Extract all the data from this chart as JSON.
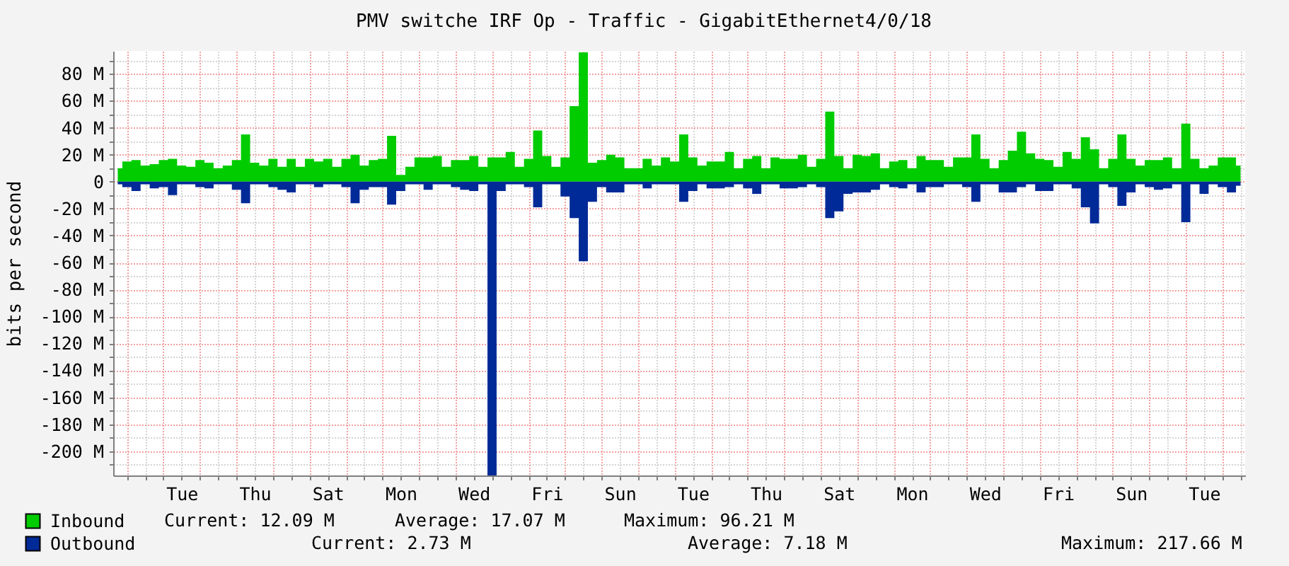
{
  "chart_data": {
    "type": "area",
    "title": "PMV switche IRF Op - Traffic - GigabitEthernet4/0/18",
    "ylabel": "bits per second",
    "categories": [
      null,
      null,
      null,
      null,
      null,
      null,
      null,
      "Tue",
      null,
      null,
      null,
      null,
      null,
      null,
      null,
      "Thu",
      null,
      null,
      null,
      null,
      null,
      null,
      null,
      "Sat",
      null,
      null,
      null,
      null,
      null,
      null,
      null,
      "Mon",
      null,
      null,
      null,
      null,
      null,
      null,
      null,
      "Wed",
      null,
      null,
      null,
      null,
      null,
      null,
      null,
      "Fri",
      null,
      null,
      null,
      null,
      null,
      null,
      null,
      "Sun",
      null,
      null,
      null,
      null,
      null,
      null,
      null,
      "Tue",
      null,
      null,
      null,
      null,
      null,
      null,
      null,
      "Thu",
      null,
      null,
      null,
      null,
      null,
      null,
      null,
      "Sat",
      null,
      null,
      null,
      null,
      null,
      null,
      null,
      "Mon",
      null,
      null,
      null,
      null,
      null,
      null,
      null,
      "Wed",
      null,
      null,
      null,
      null,
      null,
      null,
      null,
      "Fri",
      null,
      null,
      null,
      null,
      null,
      null,
      null,
      "Sun",
      null,
      null,
      null,
      null,
      null,
      null,
      null,
      "Tue",
      null,
      null,
      null,
      null
    ],
    "ylim": [
      -218,
      97
    ],
    "yticks": [
      {
        "value": -210,
        "label": null
      },
      {
        "value": -200,
        "label": "-200 M"
      },
      {
        "value": -190,
        "label": null
      },
      {
        "value": -180,
        "label": "-180 M"
      },
      {
        "value": -170,
        "label": null
      },
      {
        "value": -160,
        "label": "-160 M"
      },
      {
        "value": -150,
        "label": null
      },
      {
        "value": -140,
        "label": "-140 M"
      },
      {
        "value": -130,
        "label": null
      },
      {
        "value": -120,
        "label": "-120 M"
      },
      {
        "value": -110,
        "label": null
      },
      {
        "value": -100,
        "label": "-100 M"
      },
      {
        "value": -90,
        "label": null
      },
      {
        "value": -80,
        "label": "-80 M"
      },
      {
        "value": -70,
        "label": null
      },
      {
        "value": -60,
        "label": "-60 M"
      },
      {
        "value": -50,
        "label": null
      },
      {
        "value": -40,
        "label": "-40 M"
      },
      {
        "value": -30,
        "label": null
      },
      {
        "value": -20,
        "label": "-20 M"
      },
      {
        "value": -10,
        "label": null
      },
      0,
      {
        "value": 10,
        "label": null
      },
      {
        "value": 20,
        "label": "20 M"
      },
      {
        "value": 30,
        "label": null
      },
      {
        "value": 40,
        "label": "40 M"
      },
      {
        "value": 50,
        "label": null
      },
      {
        "value": 60,
        "label": "60 M"
      },
      {
        "value": 70,
        "label": null
      },
      {
        "value": 80,
        "label": "80 M"
      },
      {
        "value": 90,
        "label": null
      }
    ],
    "grid": true,
    "legend": "bottom left",
    "series": [
      {
        "name": "Inbound",
        "color": "#00cc00",
        "values": [
          10,
          15,
          16,
          12,
          13,
          16,
          17,
          12,
          11,
          16,
          14,
          10,
          12,
          16,
          35,
          14,
          12,
          17,
          11,
          17,
          11,
          17,
          15,
          17,
          11,
          17,
          20,
          12,
          16,
          17,
          34,
          5,
          11,
          18,
          18,
          19,
          11,
          16,
          16,
          19,
          11,
          18,
          18,
          22,
          11,
          17,
          38,
          19,
          11,
          18,
          56,
          96,
          14,
          16,
          20,
          18,
          10,
          10,
          17,
          12,
          18,
          15,
          35,
          18,
          12,
          15,
          15,
          22,
          10,
          17,
          19,
          10,
          18,
          17,
          17,
          20,
          11,
          17,
          52,
          19,
          10,
          20,
          19,
          21,
          10,
          15,
          16,
          10,
          19,
          16,
          16,
          11,
          18,
          18,
          35,
          17,
          10,
          16,
          23,
          37,
          21,
          17,
          16,
          11,
          22,
          17,
          33,
          24,
          10,
          17,
          35,
          17,
          12,
          16,
          16,
          18,
          10,
          43,
          17,
          10,
          12,
          18,
          18,
          12
        ]
      },
      {
        "name": "Outbound",
        "color": "#002a97",
        "values": [
          -2,
          -4,
          -7,
          -2,
          -5,
          -4,
          -10,
          -2,
          -2,
          -4,
          -5,
          -2,
          -2,
          -6,
          -16,
          -2,
          -2,
          -4,
          -6,
          -8,
          -2,
          -2,
          -4,
          -2,
          -2,
          -4,
          -16,
          -6,
          -4,
          -4,
          -17,
          -7,
          -2,
          -2,
          -6,
          -2,
          -2,
          -4,
          -6,
          -7,
          -2,
          -218,
          -7,
          -2,
          -2,
          -4,
          -19,
          -2,
          -2,
          -11,
          -27,
          -59,
          -15,
          -4,
          -8,
          -8,
          -2,
          -2,
          -5,
          -2,
          -2,
          -2,
          -15,
          -7,
          -2,
          -5,
          -5,
          -4,
          -2,
          -5,
          -9,
          -2,
          -2,
          -5,
          -5,
          -4,
          -2,
          -4,
          -27,
          -22,
          -9,
          -8,
          -8,
          -6,
          -2,
          -4,
          -5,
          -2,
          -8,
          -4,
          -4,
          -2,
          -2,
          -4,
          -15,
          -2,
          -2,
          -8,
          -8,
          -4,
          -2,
          -7,
          -7,
          -2,
          -2,
          -5,
          -19,
          -31,
          -2,
          -4,
          -18,
          -8,
          -2,
          -4,
          -6,
          -5,
          -2,
          -30,
          -2,
          -9,
          -2,
          -4,
          -8,
          -3
        ]
      }
    ],
    "annotations": [
      "Current: 12.09 M",
      "Average: 17.07 M",
      "Maximum: 96.21 M",
      "Current: 2.73 M",
      "Average: 7.18 M",
      "Maximum: 217.66 M"
    ]
  }
}
